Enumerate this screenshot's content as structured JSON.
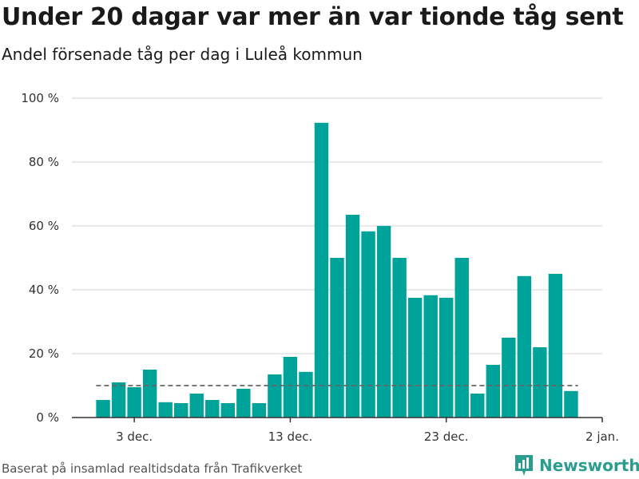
{
  "title": "Under 20 dagar var mer än var tionde tåg sent",
  "subtitle": "Andel försenade tåg per dag i Luleå kommun",
  "source": "Baserat på insamlad realtidsdata från Trafikverket",
  "brand": {
    "name": "Newsworthy",
    "icon": "bar-chart-logo-icon",
    "color": "#2a9d8f"
  },
  "chart_data": {
    "type": "bar",
    "bar_color": "#00a39a",
    "reference_line": {
      "value": 10,
      "style": "dashed",
      "color": "#666666"
    },
    "ylim": [
      0,
      100
    ],
    "y_ticks": [
      {
        "value": 0,
        "label": "0 %"
      },
      {
        "value": 20,
        "label": "20 %"
      },
      {
        "value": 40,
        "label": "40 %"
      },
      {
        "value": 60,
        "label": "60 %"
      },
      {
        "value": 80,
        "label": "80 %"
      },
      {
        "value": 100,
        "label": "100 %"
      }
    ],
    "x_ticks": [
      {
        "date": "2019-12-03",
        "label": "3 dec."
      },
      {
        "date": "2019-12-13",
        "label": "13 dec."
      },
      {
        "date": "2019-12-23",
        "label": "23 dec."
      },
      {
        "date": "2020-01-02",
        "label": "2 jan."
      }
    ],
    "x_range": [
      "2019-11-29",
      "2020-01-02"
    ],
    "grid": true,
    "categories": [
      "2019-12-01",
      "2019-12-02",
      "2019-12-03",
      "2019-12-04",
      "2019-12-05",
      "2019-12-06",
      "2019-12-07",
      "2019-12-08",
      "2019-12-09",
      "2019-12-10",
      "2019-12-11",
      "2019-12-12",
      "2019-12-13",
      "2019-12-14",
      "2019-12-15",
      "2019-12-16",
      "2019-12-17",
      "2019-12-18",
      "2019-12-19",
      "2019-12-20",
      "2019-12-21",
      "2019-12-22",
      "2019-12-23",
      "2019-12-24",
      "2019-12-25",
      "2019-12-26",
      "2019-12-27",
      "2019-12-28",
      "2019-12-29",
      "2019-12-30",
      "2019-12-31"
    ],
    "values": [
      5.5,
      11,
      9.5,
      15,
      4.8,
      4.5,
      7.5,
      5.5,
      4.5,
      9,
      4.5,
      13.5,
      19,
      14.3,
      92.3,
      50,
      63.5,
      58.3,
      60,
      50,
      37.5,
      38.3,
      37.5,
      50,
      7.5,
      16.5,
      25,
      44.3,
      22,
      45,
      8.3
    ]
  }
}
